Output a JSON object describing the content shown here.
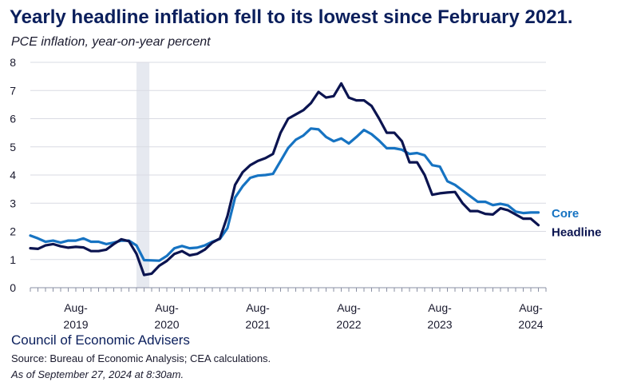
{
  "chart_data": {
    "type": "line",
    "title": "Yearly headline inflation fell to its lowest since February 2021.",
    "subtitle": "PCE inflation, year-on-year percent",
    "ylim": [
      0,
      8
    ],
    "yticks": [
      0,
      1,
      2,
      3,
      4,
      5,
      6,
      7,
      8
    ],
    "xlim": [
      0,
      68
    ],
    "xticks": [
      {
        "x": 6,
        "label": [
          "Aug-",
          "2019"
        ]
      },
      {
        "x": 18,
        "label": [
          "Aug-",
          "2020"
        ]
      },
      {
        "x": 30,
        "label": [
          "Aug-",
          "2021"
        ]
      },
      {
        "x": 42,
        "label": [
          "Aug-",
          "2022"
        ]
      },
      {
        "x": 54,
        "label": [
          "Aug-",
          "2023"
        ]
      },
      {
        "x": 66,
        "label": [
          "Aug-",
          "2024"
        ]
      }
    ],
    "shaded_region": [
      14,
      15.7
    ],
    "series": [
      {
        "name": "Core",
        "color": "#1673c2",
        "values": [
          1.85,
          1.75,
          1.63,
          1.67,
          1.6,
          1.67,
          1.67,
          1.75,
          1.63,
          1.63,
          1.55,
          1.6,
          1.67,
          1.67,
          1.5,
          0.98,
          0.97,
          0.96,
          1.13,
          1.4,
          1.48,
          1.4,
          1.42,
          1.5,
          1.63,
          1.73,
          2.12,
          3.2,
          3.6,
          3.9,
          3.98,
          4.0,
          4.04,
          4.5,
          4.96,
          5.25,
          5.4,
          5.65,
          5.62,
          5.35,
          5.2,
          5.3,
          5.12,
          5.35,
          5.6,
          5.45,
          5.22,
          4.95,
          4.95,
          4.9,
          4.75,
          4.78,
          4.7,
          4.35,
          4.3,
          3.78,
          3.65,
          3.45,
          3.25,
          3.05,
          3.05,
          2.93,
          2.98,
          2.92,
          2.7,
          2.65,
          2.67,
          2.67
        ]
      },
      {
        "name": "Headline",
        "color": "#0b1450",
        "values": [
          1.4,
          1.38,
          1.5,
          1.55,
          1.47,
          1.42,
          1.45,
          1.43,
          1.3,
          1.3,
          1.35,
          1.55,
          1.72,
          1.65,
          1.2,
          0.45,
          0.5,
          0.78,
          0.95,
          1.2,
          1.3,
          1.15,
          1.2,
          1.35,
          1.6,
          1.75,
          2.55,
          3.65,
          4.1,
          4.35,
          4.5,
          4.6,
          4.75,
          5.5,
          6.0,
          6.15,
          6.3,
          6.55,
          6.95,
          6.75,
          6.8,
          7.25,
          6.75,
          6.65,
          6.65,
          6.45,
          6.0,
          5.5,
          5.5,
          5.2,
          4.45,
          4.45,
          4.0,
          3.3,
          3.35,
          3.38,
          3.4,
          3.0,
          2.72,
          2.72,
          2.62,
          2.6,
          2.82,
          2.75,
          2.6,
          2.45,
          2.45,
          2.22
        ]
      }
    ]
  },
  "series_labels": {
    "core": "Core",
    "headline": "Headline"
  },
  "footer": {
    "org": "Council of Economic Advisers",
    "source": "Source: Bureau of Economic Analysis; CEA calculations.",
    "as_of": "As of September 27, 2024 at 8:30am."
  },
  "colors": {
    "title": "#0b1f5c",
    "grid": "#d9dbe3"
  }
}
